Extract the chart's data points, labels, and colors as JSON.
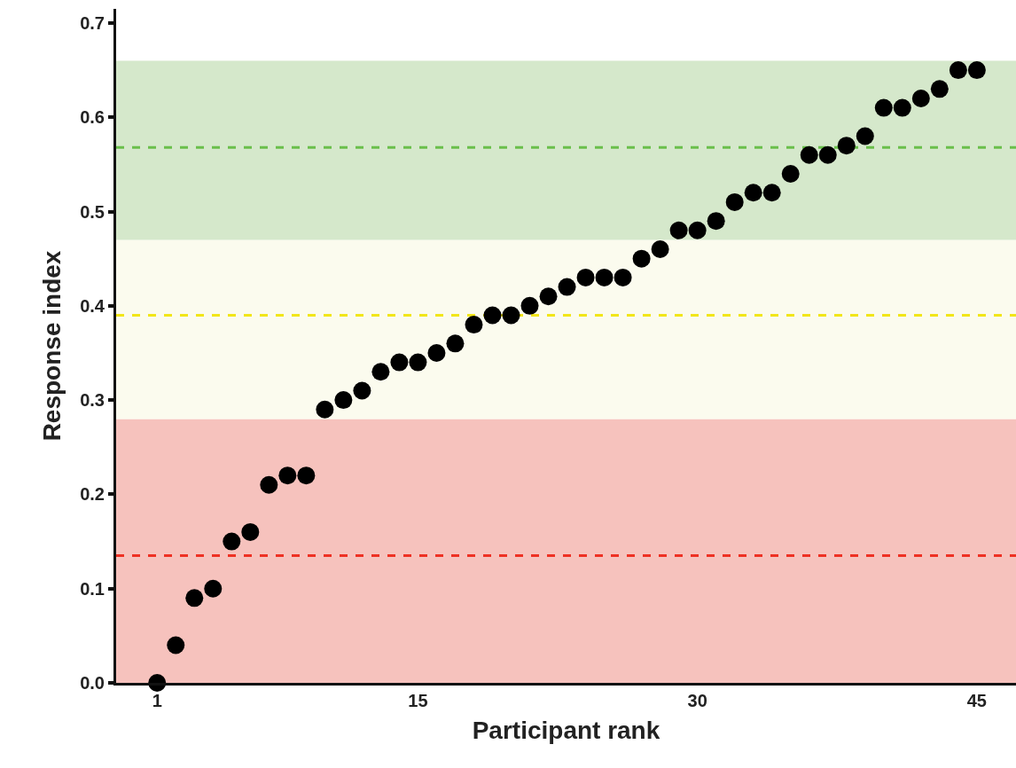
{
  "chart_data": {
    "type": "scatter",
    "xlabel": "Participant rank",
    "ylabel": "Response index",
    "x": [
      1,
      2,
      3,
      4,
      5,
      6,
      7,
      8,
      9,
      10,
      11,
      12,
      13,
      14,
      15,
      16,
      17,
      18,
      19,
      20,
      21,
      22,
      23,
      24,
      25,
      26,
      27,
      28,
      29,
      30,
      31,
      32,
      33,
      34,
      35,
      36,
      37,
      38,
      39,
      40,
      41,
      42,
      43,
      44,
      45
    ],
    "series": [
      {
        "color": "#000000",
        "values": [
          0.0,
          0.04,
          0.09,
          0.1,
          0.15,
          0.16,
          0.21,
          0.22,
          0.22,
          0.29,
          0.3,
          0.31,
          0.33,
          0.34,
          0.34,
          0.35,
          0.36,
          0.38,
          0.39,
          0.39,
          0.4,
          0.41,
          0.42,
          0.43,
          0.43,
          0.43,
          0.45,
          0.46,
          0.48,
          0.48,
          0.49,
          0.51,
          0.52,
          0.52,
          0.54,
          0.56,
          0.56,
          0.57,
          0.58,
          0.61,
          0.61,
          0.62,
          0.63,
          0.65,
          0.65
        ]
      }
    ],
    "xlim": [
      -1.2,
      47.1
    ],
    "xticks": [
      1,
      15,
      30,
      45
    ],
    "ylim": [
      0,
      0.715
    ],
    "yticks": [
      {
        "value": 0,
        "label": "0.0"
      },
      {
        "value": 0.1,
        "label": "0.1"
      },
      {
        "value": 0.2,
        "label": "0.2"
      },
      {
        "value": 0.3,
        "label": "0.3"
      },
      {
        "value": 0.4,
        "label": "0.4"
      },
      {
        "value": 0.5,
        "label": "0.5"
      },
      {
        "value": 0.6,
        "label": "0.6"
      },
      {
        "value": 0.7,
        "label": "0.7"
      }
    ],
    "bands": [
      {
        "axis": "y",
        "from": 0,
        "to": 0.28,
        "color": "#f6c2bd"
      },
      {
        "axis": "y",
        "from": 0.28,
        "to": 0.47,
        "color": "#fbfbee"
      },
      {
        "axis": "y",
        "from": 0.47,
        "to": 0.66,
        "color": "#d5e8cb"
      }
    ],
    "ref_lines": [
      {
        "axis": "y",
        "value": 0.568,
        "color": "#6abf4b",
        "line_style": "dashed"
      },
      {
        "axis": "y",
        "value": 0.39,
        "color": "#f2e619",
        "line_style": "dashed"
      },
      {
        "axis": "y",
        "value": 0.135,
        "color": "#ee3124",
        "line_style": "dashed"
      }
    ],
    "grid": false,
    "marker": "circle"
  }
}
